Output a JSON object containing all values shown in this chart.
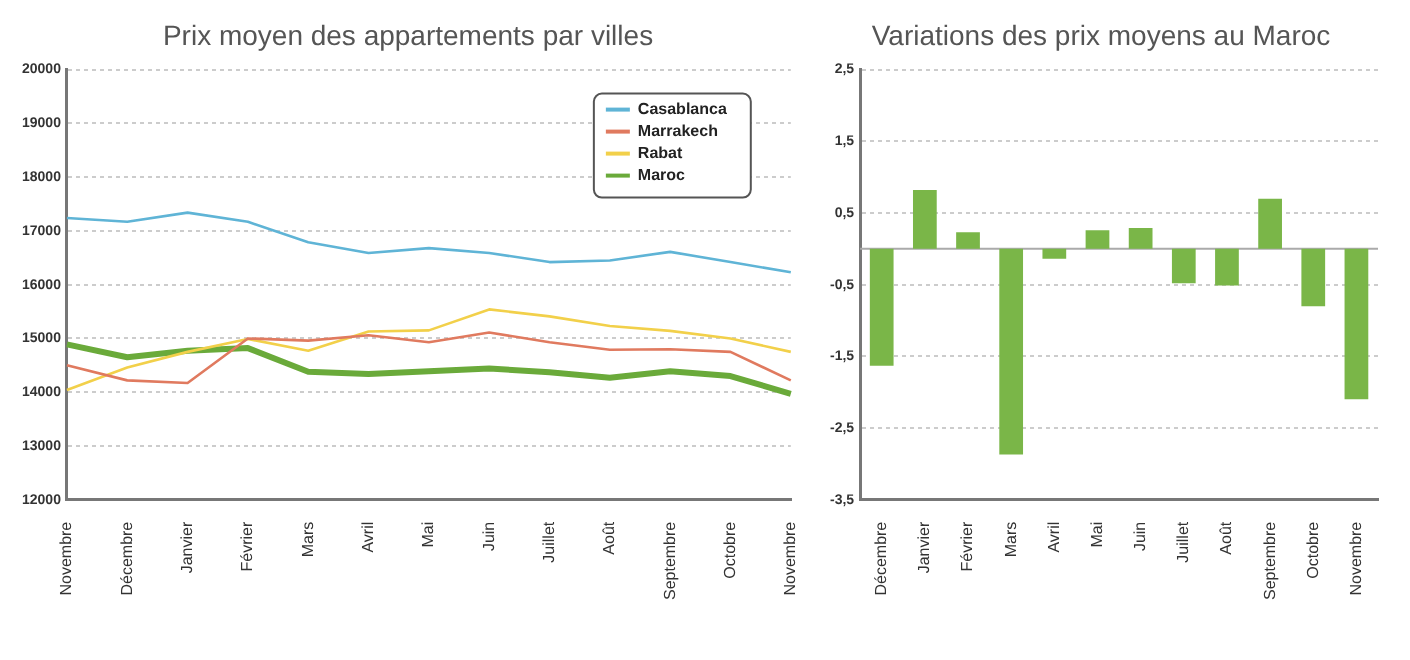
{
  "chart_data": [
    {
      "type": "line",
      "title": "Prix moyen des appartements par villes",
      "categories": [
        "Novembre",
        "Décembre",
        "Janvier",
        "Février",
        "Mars",
        "Avril",
        "Mai",
        "Juin",
        "Juillet",
        "Août",
        "Septembre",
        "Octobre",
        "Novembre"
      ],
      "series": [
        {
          "name": "Casablanca",
          "color": "#5fb4d6",
          "values": [
            17240,
            17170,
            17340,
            17170,
            16790,
            16590,
            16680,
            16590,
            16420,
            16450,
            16610,
            16420,
            16230
          ]
        },
        {
          "name": "Marrakech",
          "color": "#e07a5f",
          "values": [
            14500,
            14220,
            14170,
            15000,
            14960,
            15060,
            14930,
            15110,
            14930,
            14790,
            14800,
            14750,
            14220
          ]
        },
        {
          "name": "Rabat",
          "color": "#f2d04a",
          "values": [
            14040,
            14460,
            14750,
            14990,
            14770,
            15130,
            15150,
            15540,
            15410,
            15230,
            15140,
            15000,
            14750
          ]
        },
        {
          "name": "Maroc",
          "color": "#6aaa3a",
          "values": [
            14890,
            14650,
            14770,
            14820,
            14380,
            14340,
            14390,
            14440,
            14370,
            14270,
            14390,
            14300,
            13970
          ]
        }
      ],
      "ylim": [
        12000,
        20000
      ],
      "yticks": [
        12000,
        13000,
        14000,
        15000,
        16000,
        17000,
        18000,
        19000,
        20000
      ],
      "grid": "y",
      "legend": "top right",
      "marker": "none",
      "line_style": "solid"
    },
    {
      "type": "bar",
      "title": "Variations des prix moyens au Maroc",
      "categories": [
        "Décembre",
        "Janvier",
        "Février",
        "Mars",
        "Avril",
        "Mai",
        "Juin",
        "Juillet",
        "Août",
        "Septembre",
        "Octobre",
        "Novembre"
      ],
      "values": [
        -1.63,
        0.82,
        0.23,
        -2.87,
        -0.14,
        0.26,
        0.29,
        -0.48,
        -0.51,
        0.7,
        -0.8,
        -2.1
      ],
      "color": "#7ab648",
      "ylim": [
        -3.5,
        2.5
      ],
      "yticks": [
        {
          "value": -3.5,
          "label": "-3,5"
        },
        {
          "value": -2.5,
          "label": "-2,5"
        },
        {
          "value": -1.5,
          "label": "-1,5"
        },
        {
          "value": -0.5,
          "label": "-0,5"
        },
        {
          "value": 0.5,
          "label": "0,5"
        },
        {
          "value": 1.5,
          "label": "1,5"
        },
        {
          "value": 2.5,
          "label": "2,5"
        }
      ],
      "grid": "y",
      "legend": false,
      "ref_lines": [
        {
          "axis": "y",
          "value": 0,
          "color": "#aaaaaa"
        }
      ]
    }
  ]
}
